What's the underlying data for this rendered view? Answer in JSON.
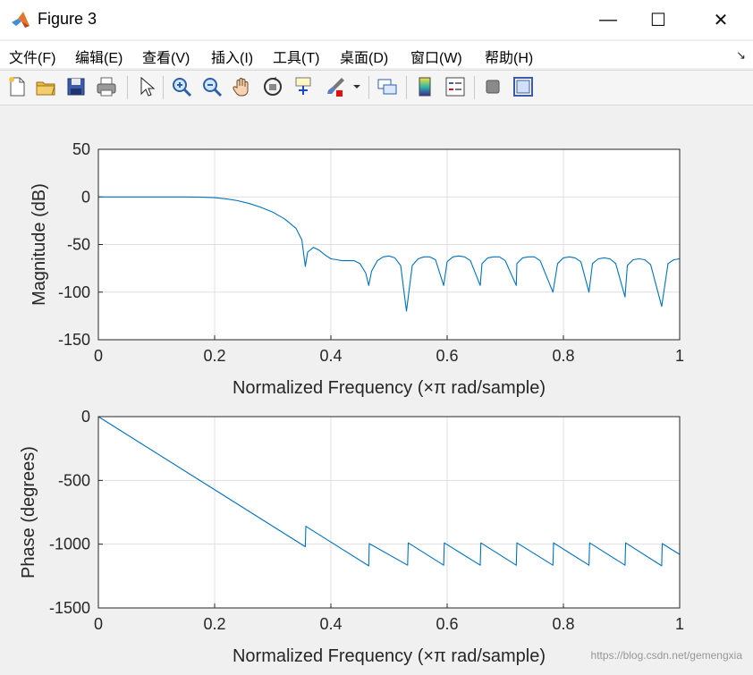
{
  "window": {
    "title": "Figure 3",
    "controls": {
      "minimize": "—",
      "maximize": "☐",
      "close": "✕"
    }
  },
  "menubar": {
    "items": [
      "文件(F)",
      "编辑(E)",
      "查看(V)",
      "插入(I)",
      "工具(T)",
      "桌面(D)",
      "窗口(W)",
      "帮助(H)"
    ],
    "overflow_icon": "↘"
  },
  "toolbar": {
    "icons": [
      "new-figure-icon",
      "open-file-icon",
      "save-icon",
      "print-icon",
      "edit-plot-arrow-icon",
      "zoom-in-icon",
      "zoom-out-icon",
      "pan-hand-icon",
      "rotate-3d-icon",
      "data-cursor-icon",
      "brush-icon",
      "brush-dropdown-icon",
      "link-plot-icon",
      "colorbar-icon",
      "legend-icon",
      "hide-plot-tools-icon",
      "show-plot-tools-icon"
    ]
  },
  "watermark": "https://blog.csdn.net/gemengxia",
  "colors": {
    "line": "#0072bd",
    "grid": "#dfdfdf",
    "axis": "#262626"
  },
  "chart_data": [
    {
      "type": "line",
      "xlabel": "Normalized Frequency  (×π rad/sample)",
      "ylabel": "Magnitude (dB)",
      "xlim": [
        0,
        1
      ],
      "ylim": [
        -150,
        50
      ],
      "xticks": [
        "0",
        "0.2",
        "0.4",
        "0.6",
        "0.8",
        "1"
      ],
      "yticks": [
        "50",
        "0",
        "-50",
        "-100",
        "-150"
      ],
      "grid": true,
      "series": [
        {
          "x": [
            0,
            0.05,
            0.1,
            0.15,
            0.18,
            0.2,
            0.22,
            0.24,
            0.26,
            0.28,
            0.3,
            0.32,
            0.34,
            0.35,
            0.356,
            0.36,
            0.37,
            0.38,
            0.39,
            0.4,
            0.41,
            0.42,
            0.43,
            0.44,
            0.45,
            0.46,
            0.465,
            0.47,
            0.48,
            0.49,
            0.5,
            0.51,
            0.52,
            0.53,
            0.54,
            0.55,
            0.56,
            0.57,
            0.58,
            0.594,
            0.6,
            0.61,
            0.62,
            0.63,
            0.64,
            0.657,
            0.66,
            0.67,
            0.68,
            0.69,
            0.7,
            0.719,
            0.72,
            0.73,
            0.74,
            0.75,
            0.76,
            0.782,
            0.79,
            0.8,
            0.81,
            0.82,
            0.83,
            0.844,
            0.85,
            0.86,
            0.87,
            0.88,
            0.89,
            0.906,
            0.91,
            0.92,
            0.93,
            0.94,
            0.95,
            0.969,
            0.98,
            0.99,
            1.0
          ],
          "y": [
            0,
            0,
            0,
            0,
            -0.3,
            -0.8,
            -2,
            -4,
            -7,
            -11,
            -16,
            -23,
            -33,
            -45,
            -73,
            -58,
            -53,
            -56,
            -61,
            -65,
            -66,
            -67,
            -67,
            -67,
            -70,
            -80,
            -93,
            -78,
            -67,
            -63,
            -62,
            -64,
            -72,
            -120,
            -72,
            -65,
            -63,
            -63,
            -66,
            -93,
            -68,
            -63,
            -62,
            -63,
            -67,
            -93,
            -70,
            -64,
            -63,
            -63,
            -67,
            -93,
            -70,
            -64,
            -63,
            -63,
            -67,
            -100,
            -70,
            -64,
            -63,
            -64,
            -68,
            -100,
            -70,
            -65,
            -64,
            -65,
            -70,
            -105,
            -72,
            -66,
            -65,
            -66,
            -71,
            -115,
            -70,
            -66,
            -65
          ]
        }
      ]
    },
    {
      "type": "line",
      "xlabel": "Normalized Frequency  (×π rad/sample)",
      "ylabel": "Phase (degrees)",
      "xlim": [
        0,
        1
      ],
      "ylim": [
        -1500,
        0
      ],
      "xticks": [
        "0",
        "0.2",
        "0.4",
        "0.6",
        "0.8",
        "1"
      ],
      "yticks": [
        "0",
        "-500",
        "-1000",
        "-1500"
      ],
      "grid": true,
      "series": [
        {
          "x": [
            0,
            0.356,
            0.357,
            0.465,
            0.466,
            0.532,
            0.533,
            0.594,
            0.595,
            0.657,
            0.658,
            0.719,
            0.72,
            0.782,
            0.783,
            0.844,
            0.845,
            0.906,
            0.907,
            0.969,
            0.97,
            1.0
          ],
          "y": [
            0,
            -1020,
            -860,
            -1170,
            -995,
            -1165,
            -990,
            -1165,
            -990,
            -1165,
            -990,
            -1165,
            -990,
            -1165,
            -990,
            -1165,
            -990,
            -1165,
            -990,
            -1170,
            -995,
            -1080
          ]
        }
      ]
    }
  ]
}
